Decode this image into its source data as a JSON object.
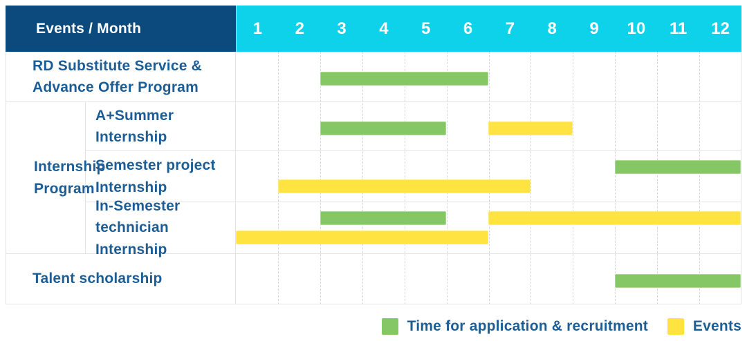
{
  "chart_data": {
    "type": "table",
    "title": "Events / Month",
    "months": [
      "1",
      "2",
      "3",
      "4",
      "5",
      "6",
      "7",
      "8",
      "9",
      "10",
      "11",
      "12"
    ],
    "axis_range": [
      1,
      12
    ],
    "grid": "dashed-vertical-month-lines",
    "legend_position": "bottom-right",
    "colors": {
      "navy_header": "#0c4a7d",
      "cyan_header": "#0ed2e9",
      "label_text": "#1c5d95",
      "application": "#86c765",
      "event": "#ffe340"
    },
    "legend": [
      {
        "kind": "application",
        "label": "Time for application & recruitment",
        "color": "#86c765"
      },
      {
        "kind": "event",
        "label": "Events",
        "color": "#ffe340"
      }
    ],
    "rows": [
      {
        "label": "RD Substitute Service & Advance Offer Program",
        "label_display": "RD Substitute Service &\nAdvance Offer Program",
        "group": null,
        "bars": [
          {
            "kind": "application",
            "start": 3,
            "end": 6,
            "lane": "middle"
          }
        ]
      },
      {
        "label": "A+Summer Internship",
        "label_display": "A+Summer\nInternship",
        "group": "Internship Program",
        "bars": [
          {
            "kind": "application",
            "start": 3,
            "end": 5,
            "lane": "middle"
          },
          {
            "kind": "event",
            "start": 7,
            "end": 8,
            "lane": "middle"
          }
        ]
      },
      {
        "label": "Semester project Internship",
        "label_display": "Semester project\nInternship",
        "group": "Internship Program",
        "bars": [
          {
            "kind": "application",
            "start": 10,
            "end": 12,
            "lane": "top"
          },
          {
            "kind": "event",
            "start": 2,
            "end": 7,
            "lane": "bottom"
          }
        ]
      },
      {
        "label": "In-Semester technician Internship",
        "label_display": "In-Semester\ntechnician Internship",
        "group": "Internship Program",
        "bars": [
          {
            "kind": "application",
            "start": 3,
            "end": 5,
            "lane": "top"
          },
          {
            "kind": "event",
            "start": 7,
            "end": 12,
            "lane": "top"
          },
          {
            "kind": "event",
            "start": 1,
            "end": 6,
            "lane": "bottom"
          }
        ]
      },
      {
        "label": "Talent scholarship",
        "label_display": "Talent scholarship",
        "group": null,
        "bars": [
          {
            "kind": "application",
            "start": 10,
            "end": 12,
            "lane": "middle"
          }
        ]
      }
    ],
    "groups": {
      "Internship Program": {
        "label": "Internship Program",
        "label_display": "Internship\nProgram"
      }
    }
  }
}
